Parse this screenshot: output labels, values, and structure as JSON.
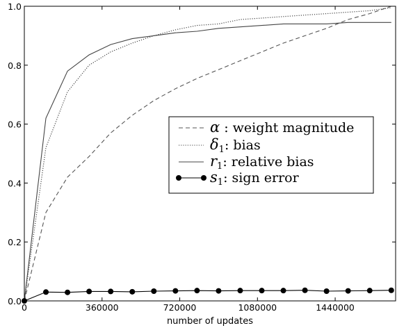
{
  "chart_data": {
    "type": "line",
    "xlabel": "number of updates",
    "ylabel": "",
    "title": "",
    "xlim": [
      0,
      1720000
    ],
    "ylim": [
      0.0,
      1.0
    ],
    "x_ticks": [
      0,
      360000,
      720000,
      1080000,
      1440000
    ],
    "x_tick_labels": [
      "0",
      "360000",
      "720000",
      "1080000",
      "1440000"
    ],
    "y_ticks": [
      0.0,
      0.2,
      0.4,
      0.6,
      0.8,
      1.0
    ],
    "y_tick_labels": [
      "0.0",
      "0.2",
      "0.4",
      "0.6",
      "0.8",
      "1.0"
    ],
    "grid": false,
    "legend_position": "center-right",
    "x": [
      0,
      100000,
      200000,
      300000,
      400000,
      500000,
      600000,
      700000,
      800000,
      900000,
      1000000,
      1100000,
      1200000,
      1300000,
      1400000,
      1500000,
      1600000,
      1700000
    ],
    "series": [
      {
        "id": "alpha",
        "symbol": "α",
        "subscript": "",
        "label": " : weight magnitude",
        "style": "dashed",
        "color": "#555555",
        "values": [
          0.0,
          0.3,
          0.42,
          0.49,
          0.57,
          0.63,
          0.68,
          0.72,
          0.755,
          0.785,
          0.815,
          0.845,
          0.875,
          0.9,
          0.925,
          0.955,
          0.975,
          1.0
        ]
      },
      {
        "id": "delta1",
        "symbol": "δ",
        "subscript": "1",
        "label": ": bias",
        "style": "dotted",
        "color": "#444444",
        "values": [
          0.0,
          0.52,
          0.71,
          0.8,
          0.845,
          0.875,
          0.9,
          0.92,
          0.935,
          0.94,
          0.955,
          0.96,
          0.965,
          0.97,
          0.975,
          0.98,
          0.985,
          0.995
        ]
      },
      {
        "id": "r1",
        "symbol": "r",
        "subscript": "1",
        "label": ": relative bias",
        "style": "solid",
        "color": "#444444",
        "values": [
          0.0,
          0.62,
          0.78,
          0.835,
          0.87,
          0.89,
          0.9,
          0.91,
          0.915,
          0.925,
          0.93,
          0.935,
          0.94,
          0.94,
          0.94,
          0.945,
          0.945,
          0.945
        ]
      },
      {
        "id": "s1",
        "symbol": "s",
        "subscript": "1",
        "label": ": sign error",
        "style": "solid-markers",
        "color": "#000000",
        "values": [
          0.0,
          0.03,
          0.029,
          0.032,
          0.032,
          0.031,
          0.033,
          0.034,
          0.035,
          0.034,
          0.035,
          0.035,
          0.035,
          0.036,
          0.033,
          0.034,
          0.035,
          0.036
        ]
      }
    ]
  }
}
